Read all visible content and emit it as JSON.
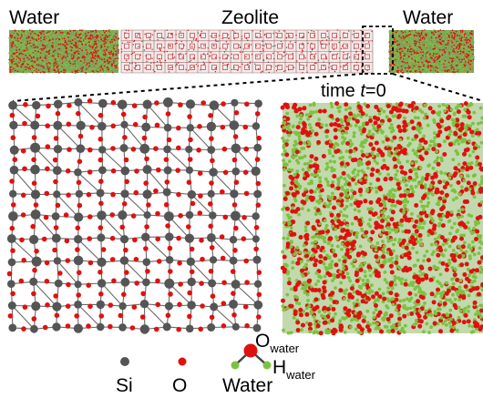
{
  "top_labels": {
    "water_left": "Water",
    "zeolite": "Zeolite",
    "water_right": "Water"
  },
  "time_label": {
    "prefix": "time ",
    "variable": "t",
    "suffix": "=0"
  },
  "legend": {
    "si_label": "Si",
    "o_label": "O",
    "water_label": "Water",
    "o_water": {
      "base": "O",
      "sub": "water"
    },
    "h_water": {
      "base": "H",
      "sub": "water"
    }
  },
  "colors": {
    "silicon": "#555555",
    "oxygen": "#e01010",
    "hydrogen": "#7cc242",
    "bond": "#444444",
    "zoom_box": "#000000"
  }
}
